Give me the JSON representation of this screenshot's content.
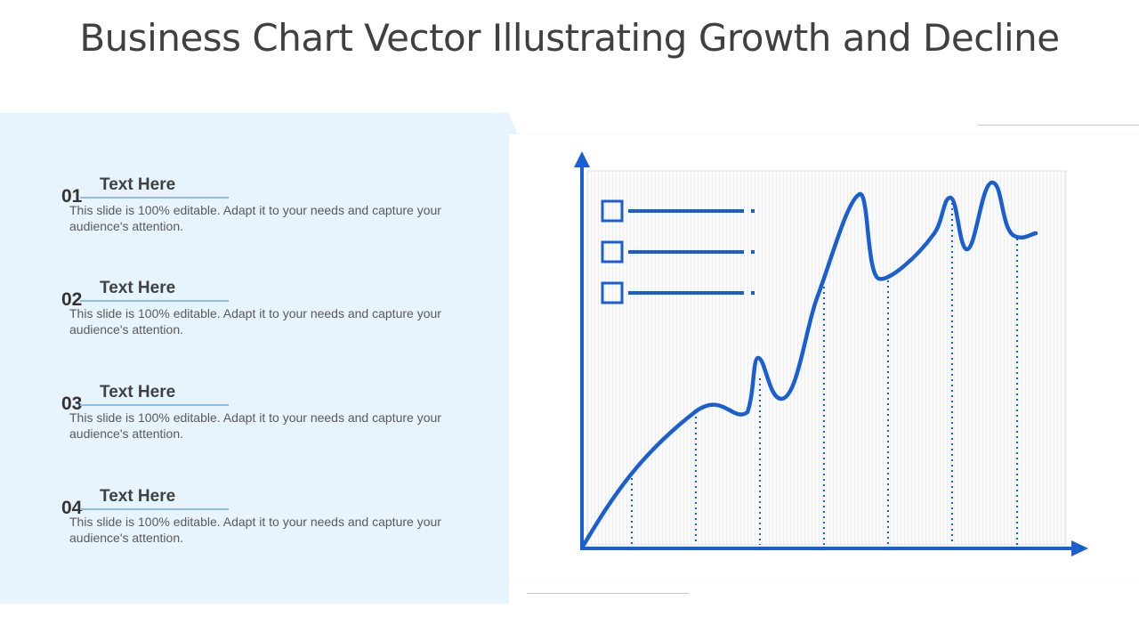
{
  "title": "Business Chart Vector Illustrating Growth and Decline",
  "items": [
    {
      "number": "01",
      "heading": "Text Here",
      "text": "This slide is 100% editable. Adapt it to your needs and capture your audience's attention."
    },
    {
      "number": "02",
      "heading": "Text Here",
      "text": "This slide is 100% editable. Adapt it to your needs and capture your audience's attention."
    },
    {
      "number": "03",
      "heading": "Text Here",
      "text": "This slide is 100% editable. Adapt it to your needs and capture your audience's attention."
    },
    {
      "number": "04",
      "heading": "Text Here",
      "text": "This slide is 100% editable. Adapt it to your needs and capture your audience's attention."
    }
  ],
  "colors": {
    "accent": "#1a5fd1",
    "panel": "#e8f4fd",
    "divider": "#8fbde8",
    "title": "#404040"
  },
  "legend": {
    "entries": 3
  }
}
